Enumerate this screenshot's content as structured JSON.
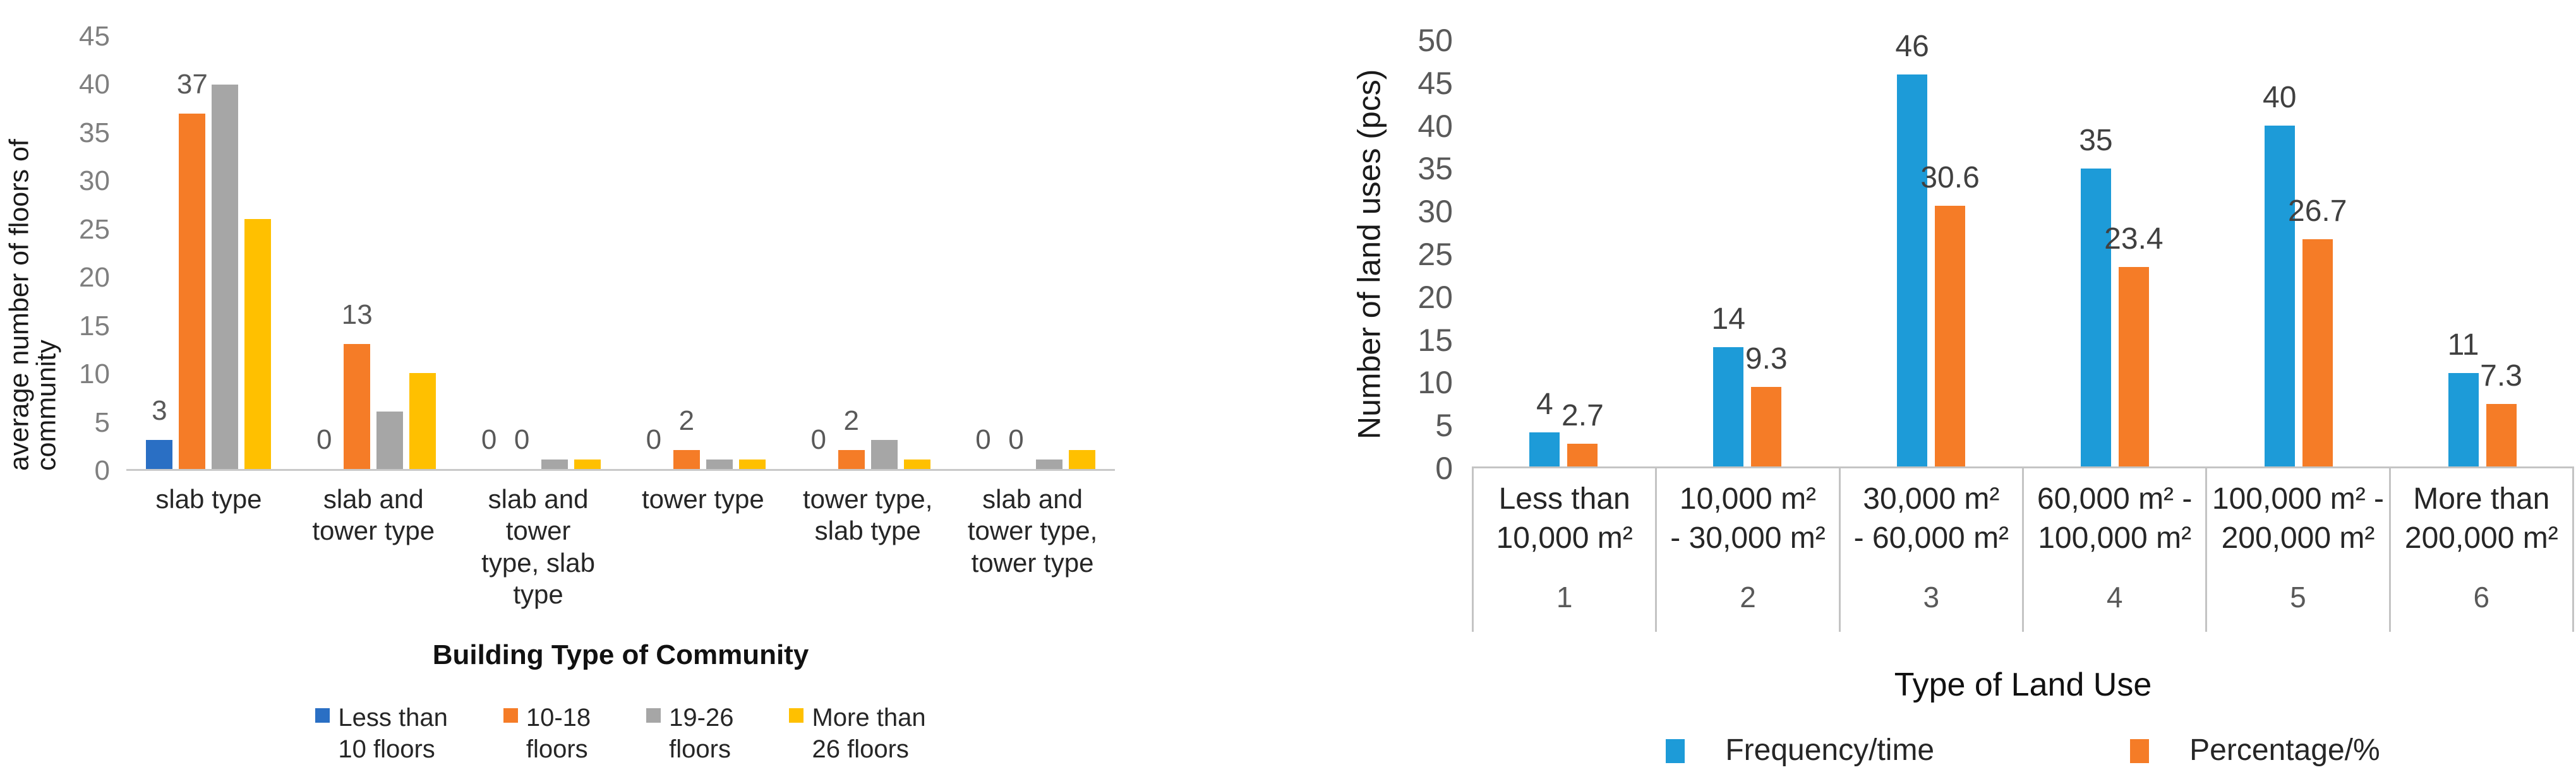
{
  "chart_data": [
    {
      "type": "bar",
      "title": "",
      "xlabel": "Building Type of Community",
      "ylabel": "average number of floors of community",
      "ylim": [
        0,
        45
      ],
      "ytick_step": 5,
      "grid": false,
      "legend_position": "bottom",
      "axis_line_color": "#c9c9c9",
      "categories": [
        {
          "label": "slab type"
        },
        {
          "label": "slab and\ntower type"
        },
        {
          "label": "slab and tower\ntype, slab type"
        },
        {
          "label": "tower type"
        },
        {
          "label": "tower type,\nslab type"
        },
        {
          "label": "slab and tower type,\ntower type"
        }
      ],
      "series": [
        {
          "name": "Less than\n10 floors",
          "color": "#2a6fc4",
          "show_labels": true,
          "values": [
            3,
            0,
            0,
            0,
            0,
            0
          ]
        },
        {
          "name": "10-18\nfloors",
          "color": "#f57c27",
          "show_labels": true,
          "values": [
            37,
            13,
            0,
            2,
            2,
            0
          ]
        },
        {
          "name": "19-26\nfloors",
          "color": "#a6a6a6",
          "show_labels": false,
          "values": [
            40,
            6,
            1,
            1,
            3,
            1
          ]
        },
        {
          "name": "More than\n26 floors",
          "color": "#ffc000",
          "show_labels": false,
          "values": [
            26,
            10,
            1,
            1,
            1,
            2
          ]
        }
      ]
    },
    {
      "type": "bar",
      "title": "",
      "xlabel": "Type of Land Use",
      "ylabel": "Number of land uses (pcs)",
      "ylim": [
        0,
        50
      ],
      "ytick_step": 5,
      "grid": false,
      "legend_position": "bottom",
      "axis_line_color": "#c4c4c4",
      "categories": [
        {
          "label": "Less than\n10,000 m²",
          "number": "1"
        },
        {
          "label": "10,000 m²\n- 30,000 m²",
          "number": "2"
        },
        {
          "label": "30,000 m²\n- 60,000 m²",
          "number": "3"
        },
        {
          "label": "60,000 m² -\n100,000 m²",
          "number": "4"
        },
        {
          "label": "100,000 m² -\n200,000 m²",
          "number": "5"
        },
        {
          "label": "More than\n200,000 m²",
          "number": "6"
        }
      ],
      "series": [
        {
          "name": "Frequency/time",
          "color": "#1d9bd8",
          "show_labels": true,
          "values": [
            4,
            14,
            46,
            35,
            40,
            11
          ]
        },
        {
          "name": "Percentage/%",
          "color": "#f57c27",
          "show_labels": true,
          "values": [
            2.7,
            9.3,
            30.6,
            23.4,
            26.7,
            7.3
          ]
        }
      ]
    }
  ]
}
